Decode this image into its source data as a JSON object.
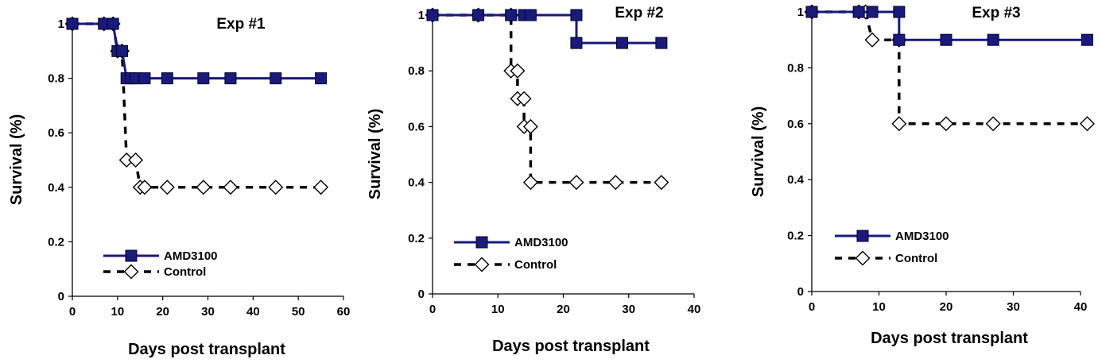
{
  "chart_data": [
    {
      "type": "line",
      "title": "Exp #1",
      "xlabel": "Days post transplant",
      "ylabel": "Survival (%)",
      "xlim": [
        0,
        60
      ],
      "ylim": [
        0,
        1
      ],
      "xticks": [
        "0",
        "10",
        "20",
        "30",
        "40",
        "50",
        "60"
      ],
      "yticks": [
        "0",
        "0.2",
        "0.4",
        "0.6",
        "0.8",
        "1"
      ],
      "legend_position": "bottom-left",
      "series": [
        {
          "name": "AMD3100",
          "color": "#1a1a7a",
          "line_style": "solid",
          "marker": "square",
          "x": [
            0,
            7,
            9,
            10,
            11,
            12,
            13,
            14,
            16,
            21,
            29,
            35,
            45,
            55
          ],
          "y": [
            1,
            1,
            1,
            0.9,
            0.9,
            0.8,
            0.8,
            0.8,
            0.8,
            0.8,
            0.8,
            0.8,
            0.8,
            0.8
          ]
        },
        {
          "name": "Control",
          "color": "#000000",
          "line_style": "dashed",
          "marker": "diamond",
          "x": [
            0,
            7,
            9,
            10,
            11,
            12,
            14,
            15,
            16,
            21,
            29,
            35,
            45,
            55
          ],
          "y": [
            1,
            1,
            1,
            0.9,
            0.9,
            0.5,
            0.5,
            0.4,
            0.4,
            0.4,
            0.4,
            0.4,
            0.4,
            0.4
          ]
        }
      ]
    },
    {
      "type": "line",
      "title": "Exp #2",
      "xlabel": "Days post transplant",
      "ylabel": "Survival (%)",
      "xlim": [
        0,
        40
      ],
      "ylim": [
        0,
        1
      ],
      "xticks": [
        "0",
        "10",
        "20",
        "30",
        "40"
      ],
      "yticks": [
        "0",
        "0.2",
        "0.4",
        "0.6",
        "0.8",
        "1"
      ],
      "legend_position": "bottom-left",
      "series": [
        {
          "name": "AMD3100",
          "color": "#1a1a7a",
          "line_style": "solid",
          "marker": "square",
          "x": [
            0,
            7,
            12,
            14,
            15,
            22,
            22,
            29,
            35
          ],
          "y": [
            1,
            1,
            1,
            1,
            1,
            1,
            0.9,
            0.9,
            0.9
          ]
        },
        {
          "name": "Control",
          "color": "#000000",
          "line_style": "dashed",
          "marker": "diamond",
          "x": [
            0,
            7,
            12,
            12,
            13,
            13,
            14,
            14,
            15,
            15,
            22,
            28,
            35
          ],
          "y": [
            1,
            1,
            1,
            0.8,
            0.8,
            0.7,
            0.7,
            0.6,
            0.6,
            0.4,
            0.4,
            0.4,
            0.4
          ]
        }
      ]
    },
    {
      "type": "line",
      "title": "Exp #3",
      "xlabel": "Days post transplant",
      "ylabel": "Survival (%)",
      "xlim": [
        0,
        40
      ],
      "ylim": [
        0,
        1
      ],
      "xticks": [
        "0",
        "10",
        "20",
        "30",
        "40"
      ],
      "yticks": [
        "0",
        "0.2",
        "0.4",
        "0.6",
        "0.8",
        "1"
      ],
      "legend_position": "bottom-left",
      "series": [
        {
          "name": "AMD3100",
          "color": "#1a1a7a",
          "line_style": "solid",
          "marker": "square",
          "x": [
            0,
            7,
            9,
            13,
            13,
            20,
            27,
            41
          ],
          "y": [
            1,
            1,
            1,
            1,
            0.9,
            0.9,
            0.9,
            0.9
          ]
        },
        {
          "name": "Control",
          "color": "#000000",
          "line_style": "dashed",
          "marker": "diamond",
          "x": [
            0,
            7,
            8,
            9,
            13,
            13,
            20,
            27,
            41
          ],
          "y": [
            1,
            1,
            1,
            0.9,
            0.9,
            0.6,
            0.6,
            0.6,
            0.6
          ]
        }
      ]
    }
  ]
}
